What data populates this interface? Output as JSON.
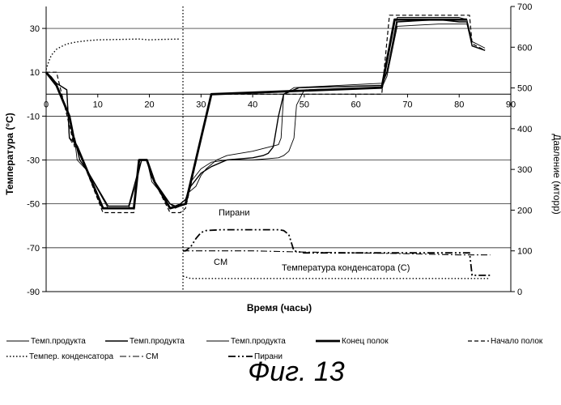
{
  "chart_data": {
    "type": "line",
    "xlabel": "Время (часы)",
    "ylabel": "Температура (°C)",
    "y2label": "Давление (мторр)",
    "xlim": [
      0,
      90
    ],
    "ylim": [
      -90,
      40
    ],
    "y2lim": [
      0,
      700
    ],
    "x_ticks": [
      0,
      10,
      20,
      30,
      40,
      50,
      60,
      70,
      80,
      90
    ],
    "y_ticks": [
      30,
      10,
      -10,
      -30,
      -50,
      -70,
      -90
    ],
    "y2_ticks": [
      0,
      100,
      200,
      300,
      400,
      500,
      600,
      700
    ],
    "grid": "horizontal",
    "caption": "Фиг. 13",
    "annotations": [
      "Пирани",
      "CM",
      "Температура конденсатора (C)"
    ],
    "legend": [
      {
        "name": "Темп.продукта",
        "style": "thin"
      },
      {
        "name": "Темп.продукта",
        "style": "medium"
      },
      {
        "name": "Темп.продукта",
        "style": "thin"
      },
      {
        "name": "Конец полок",
        "style": "thick"
      },
      {
        "name": "Начало полок",
        "style": "dashed"
      },
      {
        "name": "Темпер. конденсатора",
        "style": "dotted"
      },
      {
        "name": "CM",
        "style": "dashdot"
      },
      {
        "name": "Пирани",
        "style": "dashdotdot"
      }
    ],
    "event_x": 26.5,
    "series": [
      {
        "name": "Темп.продукта",
        "axis": "y",
        "style": "thin",
        "x": [
          0,
          1,
          2,
          4,
          4.5,
          5,
          5.5,
          6,
          8,
          12,
          16,
          17.5,
          18.5,
          19.5,
          20.5,
          24,
          25,
          26,
          27,
          27.5,
          29,
          30,
          31,
          33,
          35,
          40,
          45,
          45.5,
          46,
          48,
          65,
          66,
          68,
          76,
          80,
          81.5,
          82.5,
          85
        ],
        "y": [
          10,
          8,
          5,
          2,
          -20,
          -22,
          -20,
          -30,
          -35,
          -52,
          -52,
          -40,
          -30,
          -30,
          -40,
          -50,
          -52,
          -51,
          -50,
          -45,
          -42,
          -37,
          -34,
          -30,
          -28,
          -26,
          -23,
          -20,
          0,
          3,
          5,
          10,
          35,
          35,
          35,
          34,
          24,
          21
        ]
      },
      {
        "name": "Темп.продукта",
        "axis": "y",
        "style": "medium",
        "x": [
          0,
          2,
          4,
          4.5,
          5,
          5.5,
          6.5,
          8,
          12,
          16,
          17.5,
          18.5,
          19.5,
          20.5,
          24,
          25,
          26,
          27,
          28,
          30,
          32,
          35,
          40,
          42,
          43,
          44,
          45,
          46,
          49,
          65,
          66,
          68,
          76,
          80,
          81.5,
          82.5,
          85
        ],
        "y": [
          10,
          5,
          2,
          -20,
          -21,
          -20,
          -30,
          -35,
          -51,
          -51,
          -38,
          -30,
          -30,
          -38,
          -50,
          -51,
          -50,
          -48,
          -42,
          -36,
          -33,
          -30,
          -29,
          -28,
          -27,
          -24,
          -10,
          0,
          3,
          4,
          10,
          33,
          34,
          33,
          33,
          22,
          20
        ]
      },
      {
        "name": "Темп.продукта",
        "axis": "y",
        "style": "thin",
        "x": [
          0,
          2,
          4,
          4.5,
          5,
          5.5,
          6.5,
          8,
          12,
          16,
          17.5,
          18.5,
          19.5,
          20.5,
          24,
          25,
          26,
          27,
          28,
          30,
          32,
          35,
          40,
          45,
          46,
          47,
          48,
          48.5,
          50,
          65,
          66,
          68,
          76,
          80,
          81.5,
          82.5,
          85
        ],
        "y": [
          10,
          5,
          2,
          -20,
          -21,
          -20,
          -30,
          -35,
          -51,
          -51,
          -38,
          -30,
          -30,
          -38,
          -50,
          -51,
          -50,
          -48,
          -40,
          -34,
          -31,
          -30,
          -30,
          -29,
          -28,
          -26,
          -20,
          -5,
          2,
          3,
          8,
          31,
          32,
          32,
          32,
          22,
          20
        ]
      },
      {
        "name": "Конец полок",
        "axis": "y",
        "style": "thick",
        "x": [
          0,
          2,
          4.5,
          5.5,
          6,
          11,
          17,
          18,
          19.5,
          21,
          24,
          27,
          32,
          65,
          67.5,
          81.5
        ],
        "y": [
          10,
          4,
          -10,
          -22,
          -24,
          -52,
          -52,
          -30,
          -30,
          -40,
          -52,
          -50,
          0,
          3,
          34,
          34
        ]
      },
      {
        "name": "Начало полок",
        "axis": "y",
        "style": "dashed",
        "x": [
          0,
          2,
          5.5,
          6,
          11,
          17,
          18,
          19.5,
          21,
          24,
          26,
          27,
          32,
          65,
          66.5,
          82,
          82.5,
          85
        ],
        "y": [
          10,
          10,
          -24,
          -24,
          -54,
          -54,
          -30,
          -30,
          -40,
          -54,
          -54,
          -52,
          0,
          0,
          36,
          36,
          23,
          20
        ]
      },
      {
        "name": "Темпер. конденсатора",
        "axis": "y",
        "style": "dotted",
        "x": [
          26.5,
          28,
          30,
          40,
          50,
          60,
          70,
          80,
          86
        ],
        "y": [
          -83,
          -84,
          -84,
          -84,
          -84,
          -84,
          -84,
          -84,
          -84
        ]
      },
      {
        "name": "Давление",
        "axis": "y2",
        "style": "dotted",
        "x": [
          0,
          0.5,
          1,
          2,
          3,
          4,
          6,
          8,
          10,
          14,
          18,
          20,
          22,
          26
        ],
        "y": [
          545,
          565,
          580,
          595,
          602,
          608,
          613,
          616,
          618,
          619,
          620,
          618,
          619,
          620
        ]
      },
      {
        "name": "Пирани",
        "axis": "y2",
        "style": "dashdotdot",
        "x": [
          26.5,
          27,
          28,
          29,
          30,
          31,
          34,
          40,
          45,
          46,
          47,
          48,
          50,
          60,
          70,
          80,
          82,
          82.5,
          86
        ],
        "y": [
          100,
          100,
          110,
          130,
          145,
          150,
          152,
          152,
          152,
          150,
          140,
          100,
          95,
          95,
          95,
          95,
          95,
          40,
          40
        ]
      },
      {
        "name": "CM",
        "axis": "y2",
        "style": "dashdot",
        "x": [
          26.5,
          28,
          30,
          40,
          50,
          60,
          70,
          80,
          86
        ],
        "y": [
          100,
          100,
          100,
          100,
          97,
          95,
          93,
          90,
          90
        ]
      }
    ]
  }
}
